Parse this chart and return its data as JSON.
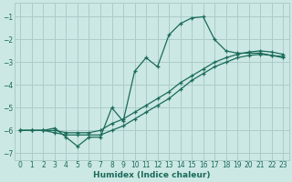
{
  "xlabel": "Humidex (Indice chaleur)",
  "bg_color": "#cce8e4",
  "grid_color": "#aaccca",
  "line_color": "#1a6b5a",
  "xlim": [
    -0.5,
    23.5
  ],
  "ylim": [
    -7.3,
    -0.4
  ],
  "xticks": [
    0,
    1,
    2,
    3,
    4,
    5,
    6,
    7,
    8,
    9,
    10,
    11,
    12,
    13,
    14,
    15,
    16,
    17,
    18,
    19,
    20,
    21,
    22,
    23
  ],
  "yticks": [
    -7,
    -6,
    -5,
    -4,
    -3,
    -2,
    -1
  ],
  "series1_x": [
    0,
    1,
    2,
    3,
    4,
    5,
    6,
    7,
    8,
    9,
    10,
    11,
    12,
    13,
    14,
    15,
    16,
    17,
    18,
    19,
    20,
    21,
    22,
    23
  ],
  "series1_y": [
    -6.0,
    -6.0,
    -6.0,
    -5.9,
    -6.3,
    -6.7,
    -6.3,
    -6.3,
    -5.0,
    -5.6,
    -3.4,
    -2.8,
    -3.2,
    -1.8,
    -1.3,
    -1.05,
    -1.0,
    -2.0,
    -2.5,
    -2.6,
    -2.6,
    -2.6,
    -2.7,
    -2.8
  ],
  "series2_x": [
    0,
    1,
    2,
    3,
    4,
    5,
    6,
    7,
    8,
    9,
    10,
    11,
    12,
    13,
    14,
    15,
    16,
    17,
    18,
    19,
    20,
    21,
    22,
    23
  ],
  "series2_y": [
    -6.0,
    -6.0,
    -6.0,
    -6.0,
    -6.1,
    -6.1,
    -6.1,
    -6.0,
    -5.7,
    -5.5,
    -5.2,
    -4.9,
    -4.6,
    -4.3,
    -3.9,
    -3.6,
    -3.3,
    -3.0,
    -2.8,
    -2.65,
    -2.55,
    -2.5,
    -2.55,
    -2.65
  ],
  "series3_x": [
    0,
    1,
    2,
    3,
    4,
    5,
    6,
    7,
    8,
    9,
    10,
    11,
    12,
    13,
    14,
    15,
    16,
    17,
    18,
    19,
    20,
    21,
    22,
    23
  ],
  "series3_y": [
    -6.0,
    -6.0,
    -6.0,
    -6.1,
    -6.2,
    -6.2,
    -6.2,
    -6.2,
    -6.0,
    -5.8,
    -5.5,
    -5.2,
    -4.9,
    -4.6,
    -4.2,
    -3.8,
    -3.5,
    -3.2,
    -3.0,
    -2.8,
    -2.7,
    -2.65,
    -2.7,
    -2.75
  ]
}
